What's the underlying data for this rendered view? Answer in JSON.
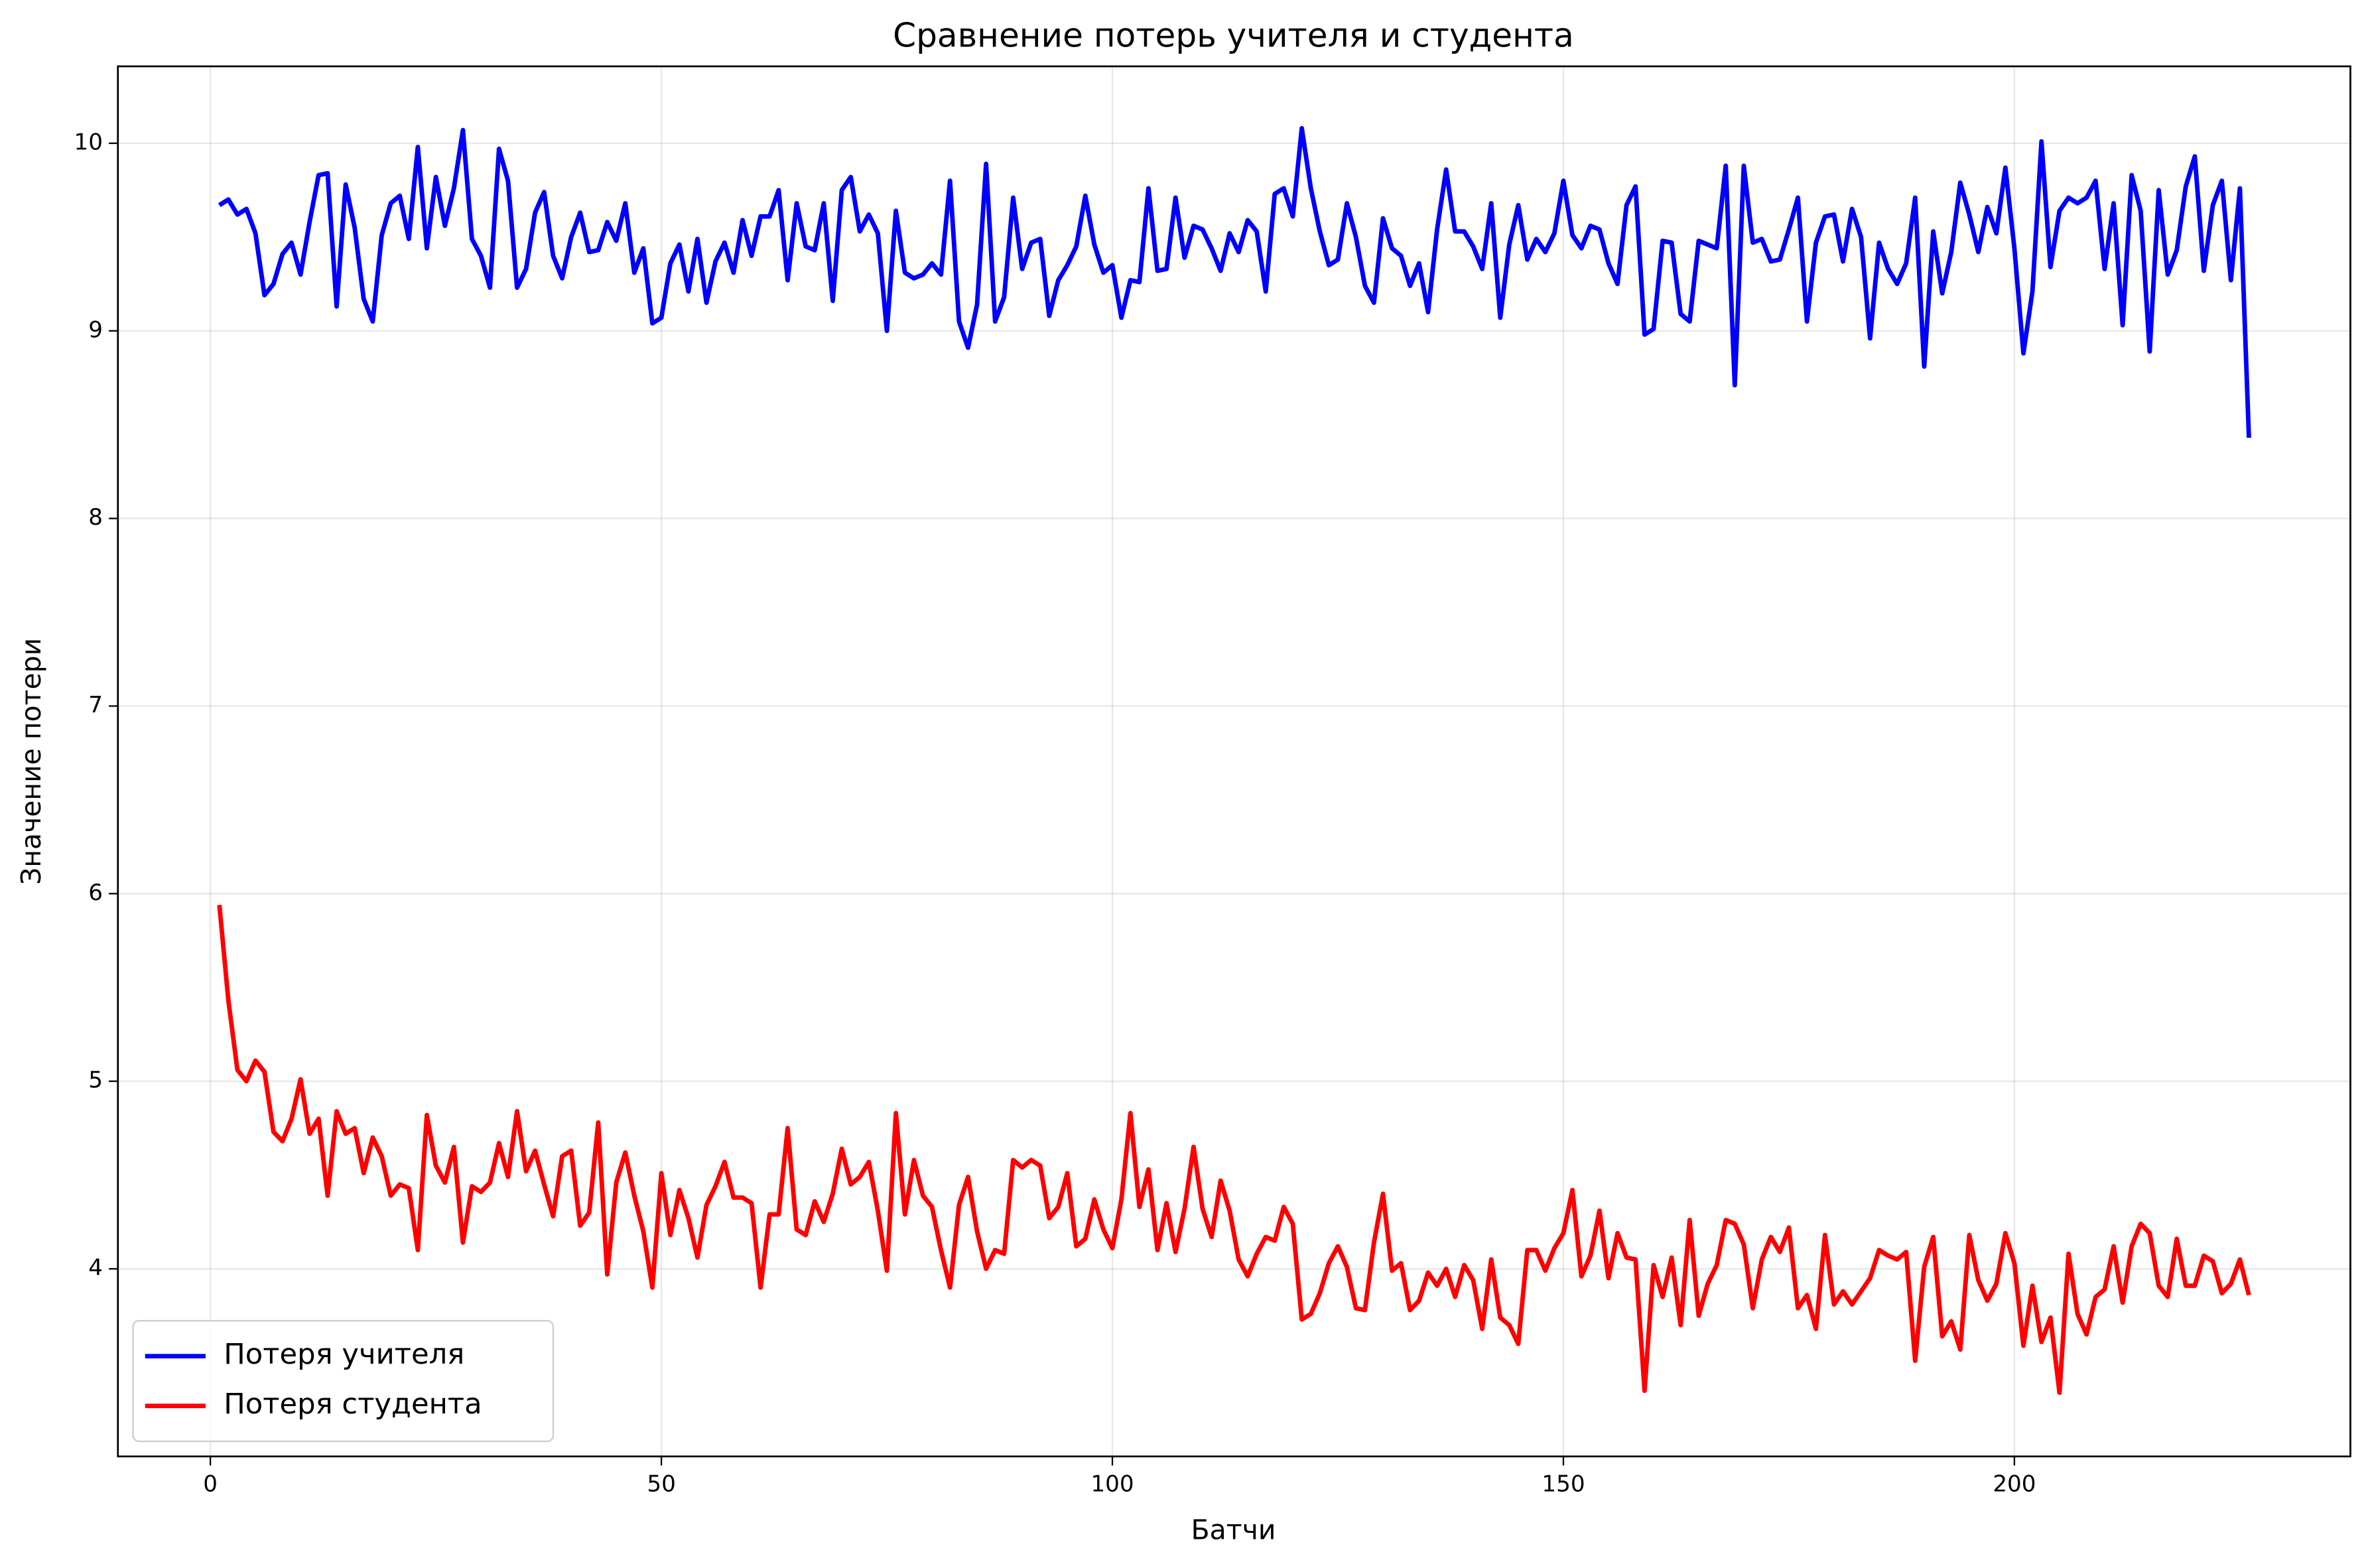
{
  "chart_data": {
    "type": "line",
    "title": "Сравнение потерь учителя и студента",
    "xlabel": "Батчи",
    "ylabel": "Значение потери",
    "x": [
      1,
      2,
      3,
      4,
      5,
      6,
      7,
      8,
      9,
      10,
      11,
      12,
      13,
      14,
      15,
      16,
      17,
      18,
      19,
      20,
      21,
      22,
      23,
      24,
      25,
      26,
      27,
      28,
      29,
      30,
      31,
      32,
      33,
      34,
      35,
      36,
      37,
      38,
      39,
      40,
      41,
      42,
      43,
      44,
      45,
      46,
      47,
      48,
      49,
      50,
      51,
      52,
      53,
      54,
      55,
      56,
      57,
      58,
      59,
      60,
      61,
      62,
      63,
      64,
      65,
      66,
      67,
      68,
      69,
      70,
      71,
      72,
      73,
      74,
      75,
      76,
      77,
      78,
      79,
      80,
      81,
      82,
      83,
      84,
      85,
      86,
      87,
      88,
      89,
      90,
      91,
      92,
      93,
      94,
      95,
      96,
      97,
      98,
      99,
      100,
      101,
      102,
      103,
      104,
      105,
      106,
      107,
      108,
      109,
      110,
      111,
      112,
      113,
      114,
      115,
      116,
      117,
      118,
      119,
      120,
      121,
      122,
      123,
      124,
      125,
      126,
      127,
      128,
      129,
      130,
      131,
      132,
      133,
      134,
      135,
      136,
      137,
      138,
      139,
      140,
      141,
      142,
      143,
      144,
      145,
      146,
      147,
      148,
      149,
      150,
      151,
      152,
      153,
      154,
      155,
      156,
      157,
      158,
      159,
      160,
      161,
      162,
      163,
      164,
      165,
      166,
      167,
      168,
      169,
      170,
      171,
      172,
      173,
      174,
      175,
      176,
      177,
      178,
      179,
      180,
      181,
      182,
      183,
      184,
      185,
      186,
      187,
      188,
      189,
      190,
      191,
      192,
      193,
      194,
      195,
      196,
      197,
      198,
      199,
      200,
      201,
      202,
      203,
      204,
      205,
      206,
      207,
      208,
      209,
      210,
      211,
      212,
      213,
      214,
      215,
      216,
      217,
      218,
      219,
      220,
      221,
      222,
      223,
      224,
      225,
      226
    ],
    "series": [
      {
        "name": "Потеря учителя",
        "color": "#0000ff",
        "values": [
          9.67,
          9.7,
          9.62,
          9.65,
          9.52,
          9.19,
          9.25,
          9.41,
          9.47,
          9.3,
          9.58,
          9.83,
          9.84,
          9.13,
          9.78,
          9.55,
          9.17,
          9.05,
          9.51,
          9.68,
          9.72,
          9.49,
          9.98,
          9.44,
          9.82,
          9.56,
          9.76,
          10.07,
          9.49,
          9.4,
          9.23,
          9.97,
          9.8,
          9.23,
          9.33,
          9.63,
          9.74,
          9.4,
          9.28,
          9.5,
          9.63,
          9.42,
          9.43,
          9.58,
          9.48,
          9.68,
          9.31,
          9.44,
          9.04,
          9.07,
          9.36,
          9.46,
          9.21,
          9.49,
          9.15,
          9.37,
          9.47,
          9.31,
          9.59,
          9.4,
          9.61,
          9.61,
          9.75,
          9.27,
          9.68,
          9.45,
          9.43,
          9.68,
          9.16,
          9.75,
          9.82,
          9.53,
          9.62,
          9.52,
          9.0,
          9.64,
          9.31,
          9.28,
          9.3,
          9.36,
          9.3,
          9.8,
          9.05,
          8.91,
          9.14,
          9.89,
          9.05,
          9.18,
          9.71,
          9.33,
          9.47,
          9.49,
          9.08,
          9.27,
          9.35,
          9.45,
          9.72,
          9.46,
          9.31,
          9.35,
          9.07,
          9.27,
          9.26,
          9.76,
          9.32,
          9.33,
          9.71,
          9.39,
          9.56,
          9.54,
          9.44,
          9.32,
          9.52,
          9.42,
          9.59,
          9.53,
          9.21,
          9.73,
          9.76,
          9.61,
          10.08,
          9.76,
          9.53,
          9.35,
          9.38,
          9.68,
          9.5,
          9.24,
          9.15,
          9.6,
          9.44,
          9.4,
          9.24,
          9.36,
          9.1,
          9.54,
          9.86,
          9.53,
          9.53,
          9.45,
          9.33,
          9.68,
          9.07,
          9.46,
          9.67,
          9.38,
          9.49,
          9.42,
          9.52,
          9.8,
          9.51,
          9.44,
          9.56,
          9.54,
          9.36,
          9.25,
          9.67,
          9.77,
          8.98,
          9.01,
          9.48,
          9.47,
          9.09,
          9.05,
          9.48,
          9.46,
          9.44,
          9.88,
          8.71,
          9.88,
          9.47,
          9.49,
          9.37,
          9.38,
          9.54,
          9.71,
          9.05,
          9.47,
          9.61,
          9.62,
          9.37,
          9.65,
          9.5,
          8.96,
          9.47,
          9.33,
          9.25,
          9.36,
          9.71,
          8.81,
          9.53,
          9.2,
          9.42,
          9.79,
          9.62,
          9.42,
          9.66,
          9.52,
          9.87,
          9.44,
          8.88,
          9.21,
          10.01,
          9.34,
          9.64,
          9.71,
          9.68,
          9.71,
          9.8,
          9.33,
          9.68,
          9.03,
          9.83,
          9.64,
          8.89,
          9.75,
          9.3,
          9.43,
          9.77,
          9.93,
          9.32,
          9.67,
          9.8,
          9.27,
          9.76,
          8.43
        ]
      },
      {
        "name": "Потеря студента",
        "color": "#ff0000",
        "values": [
          5.94,
          5.43,
          5.06,
          5.0,
          5.11,
          5.05,
          4.73,
          4.68,
          4.8,
          5.01,
          4.72,
          4.8,
          4.39,
          4.84,
          4.72,
          4.75,
          4.51,
          4.7,
          4.6,
          4.39,
          4.45,
          4.43,
          4.1,
          4.82,
          4.55,
          4.46,
          4.65,
          4.14,
          4.44,
          4.41,
          4.46,
          4.67,
          4.49,
          4.84,
          4.52,
          4.63,
          4.45,
          4.28,
          4.6,
          4.63,
          4.23,
          4.3,
          4.78,
          3.97,
          4.46,
          4.62,
          4.39,
          4.2,
          3.9,
          4.51,
          4.18,
          4.42,
          4.27,
          4.06,
          4.34,
          4.44,
          4.57,
          4.38,
          4.38,
          4.35,
          3.9,
          4.29,
          4.29,
          4.75,
          4.21,
          4.18,
          4.36,
          4.25,
          4.4,
          4.64,
          4.45,
          4.49,
          4.57,
          4.31,
          3.99,
          4.83,
          4.29,
          4.58,
          4.39,
          4.33,
          4.1,
          3.9,
          4.34,
          4.49,
          4.2,
          4.0,
          4.1,
          4.08,
          4.58,
          4.54,
          4.58,
          4.55,
          4.27,
          4.33,
          4.51,
          4.12,
          4.16,
          4.37,
          4.21,
          4.11,
          4.37,
          4.83,
          4.33,
          4.53,
          4.1,
          4.35,
          4.09,
          4.32,
          4.65,
          4.32,
          4.17,
          4.47,
          4.31,
          4.05,
          3.96,
          4.08,
          4.17,
          4.15,
          4.33,
          4.24,
          3.73,
          3.76,
          3.87,
          4.03,
          4.12,
          4.01,
          3.79,
          3.78,
          4.14,
          4.4,
          3.99,
          4.03,
          3.78,
          3.83,
          3.98,
          3.91,
          4.0,
          3.85,
          4.02,
          3.94,
          3.68,
          4.05,
          3.74,
          3.7,
          3.6,
          4.1,
          4.1,
          3.99,
          4.11,
          4.19,
          4.42,
          3.96,
          4.07,
          4.31,
          3.95,
          4.19,
          4.06,
          4.05,
          3.35,
          4.02,
          3.85,
          4.06,
          3.7,
          4.26,
          3.75,
          3.92,
          4.02,
          4.26,
          4.24,
          4.13,
          3.79,
          4.05,
          4.17,
          4.09,
          4.22,
          3.79,
          3.86,
          3.68,
          4.18,
          3.81,
          3.88,
          3.81,
          3.88,
          3.95,
          4.1,
          4.07,
          4.05,
          4.09,
          3.51,
          4.01,
          4.17,
          3.64,
          3.72,
          3.57,
          4.18,
          3.94,
          3.83,
          3.92,
          4.19,
          4.03,
          3.59,
          3.91,
          3.61,
          3.74,
          3.34,
          4.08,
          3.76,
          3.65,
          3.85,
          3.89,
          4.12,
          3.82,
          4.12,
          4.24,
          4.19,
          3.91,
          3.85,
          4.16,
          3.91,
          3.91,
          4.07,
          4.04,
          3.87,
          3.92,
          4.05,
          3.86
        ]
      }
    ],
    "xlim": [
      -10.25,
      237.25
    ],
    "xticks": [
      0,
      50,
      100,
      150,
      200
    ],
    "ylim": [
      3.0,
      10.41
    ],
    "yticks": [
      4,
      5,
      6,
      7,
      8,
      9,
      10
    ],
    "grid": true,
    "legend": "lower left"
  }
}
